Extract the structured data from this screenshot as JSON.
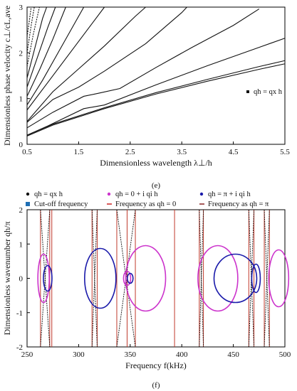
{
  "chart_data": [
    {
      "type": "line",
      "panel_label": "(e)",
      "xlabel": "Dimensionless wavelength",
      "xlabel_symbol": "λ⊥/h",
      "ylabel": "Dimensionless phase velocity",
      "ylabel_symbol": "c⊥/cL,ave",
      "xlim": [
        0.5,
        5.5
      ],
      "ylim": [
        0,
        3
      ],
      "xticks": [
        "0.5",
        "1.5",
        "2.5",
        "3.5",
        "4.5",
        "5.5"
      ],
      "yticks": [
        "0",
        "1",
        "2",
        "3"
      ],
      "legend": {
        "position": "right",
        "label": "qh = qx h"
      },
      "series": [
        {
          "values": [
            [
              0.5,
              0.18
            ],
            [
              1.0,
              0.42
            ],
            [
              2.0,
              0.78
            ],
            [
              3.0,
              1.1
            ],
            [
              4.0,
              1.38
            ],
            [
              5.0,
              1.64
            ],
            [
              5.5,
              1.76
            ]
          ]
        },
        {
          "values": [
            [
              0.5,
              0.2
            ],
            [
              1.0,
              0.44
            ],
            [
              2.0,
              0.8
            ],
            [
              3.0,
              1.13
            ],
            [
              4.0,
              1.42
            ],
            [
              5.0,
              1.7
            ],
            [
              5.5,
              1.83
            ]
          ]
        },
        {
          "values": [
            [
              0.5,
              0.2
            ],
            [
              0.9,
              0.4
            ],
            [
              1.6,
              0.78
            ],
            [
              2.0,
              0.86
            ],
            [
              3.0,
              1.3
            ],
            [
              4.0,
              1.72
            ],
            [
              5.0,
              2.12
            ],
            [
              5.5,
              2.32
            ]
          ]
        },
        {
          "values": [
            [
              0.5,
              0.36
            ],
            [
              1.0,
              0.7
            ],
            [
              1.6,
              1.05
            ],
            [
              1.9,
              1.12
            ],
            [
              2.3,
              1.22
            ],
            [
              3.0,
              1.68
            ],
            [
              3.7,
              2.12
            ],
            [
              4.5,
              2.6
            ],
            [
              5.0,
              2.96
            ]
          ]
        },
        {
          "values": [
            [
              0.5,
              0.48
            ],
            [
              1.0,
              0.98
            ],
            [
              1.5,
              1.25
            ],
            [
              2.0,
              1.6
            ],
            [
              2.8,
              2.2
            ],
            [
              3.5,
              2.88
            ],
            [
              3.6,
              3.0
            ]
          ]
        },
        {
          "values": [
            [
              0.5,
              0.5
            ],
            [
              1.0,
              1.15
            ],
            [
              1.5,
              1.65
            ],
            [
              2.0,
              2.15
            ],
            [
              2.6,
              2.8
            ],
            [
              2.8,
              3.0
            ]
          ]
        },
        {
          "values": [
            [
              0.5,
              0.75
            ],
            [
              0.9,
              1.35
            ],
            [
              1.3,
              1.95
            ],
            [
              1.7,
              2.55
            ],
            [
              2.0,
              3.0
            ]
          ]
        },
        {
          "values": [
            [
              0.5,
              0.86
            ],
            [
              0.8,
              1.4
            ],
            [
              1.1,
              2.0
            ],
            [
              1.4,
              2.6
            ],
            [
              1.6,
              3.0
            ]
          ]
        },
        {
          "values": [
            [
              0.5,
              1.05
            ],
            [
              0.75,
              1.65
            ],
            [
              1.0,
              2.3
            ],
            [
              1.25,
              3.0
            ]
          ]
        },
        {
          "values": [
            [
              0.5,
              1.25
            ],
            [
              0.7,
              1.9
            ],
            [
              0.9,
              2.55
            ],
            [
              1.05,
              3.0
            ]
          ]
        },
        {
          "values": [
            [
              0.5,
              1.45
            ],
            [
              0.65,
              2.1
            ],
            [
              0.8,
              2.75
            ],
            [
              0.88,
              3.0
            ]
          ]
        },
        {
          "values": [
            [
              0.5,
              1.7
            ],
            [
              0.62,
              2.4
            ],
            [
              0.74,
              3.0
            ]
          ]
        },
        {
          "values": [
            [
              0.5,
              2.0
            ],
            [
              0.58,
              2.6
            ],
            [
              0.64,
              3.0
            ]
          ]
        },
        {
          "values": [
            [
              0.5,
              2.35
            ],
            [
              0.55,
              2.75
            ],
            [
              0.58,
              3.0
            ]
          ]
        }
      ]
    },
    {
      "type": "line",
      "panel_label": "(f)",
      "xlabel": "Frequency",
      "xlabel_symbol": "f(kHz)",
      "ylabel": "Dimensionless wavenumber",
      "ylabel_symbol": "qh/π",
      "xlim": [
        250,
        500
      ],
      "ylim": [
        -2,
        2
      ],
      "xticks": [
        "250",
        "300",
        "350",
        "400",
        "450",
        "500"
      ],
      "yticks": [
        "-2",
        "-1",
        "0",
        "1",
        "2"
      ],
      "legend": {
        "position": "top",
        "entries": [
          {
            "label": "qh = qx h",
            "color": "#111111",
            "marker": "dot"
          },
          {
            "label": "qh = 0 + i qi h",
            "color": "#cc33cc",
            "marker": "dot"
          },
          {
            "label": "qh = π + i qi h",
            "color": "#1a1aaa",
            "marker": "dot"
          },
          {
            "label": "Cut-off frequency",
            "color": "#1f6fb5",
            "marker": "square"
          },
          {
            "label": "Frequency as qh = 0",
            "color": "#cc2222",
            "marker": "dash"
          },
          {
            "label": "Frequency as qh = π",
            "color": "#882222",
            "marker": "dash"
          }
        ]
      },
      "cutoff_frequencies": [
        263,
        272,
        274,
        313,
        318,
        337,
        347,
        355,
        393,
        417,
        421,
        465,
        470,
        480,
        485
      ],
      "colors": {
        "real": "#111111",
        "imag0": "#cc33cc",
        "imagpi": "#1a1aaa",
        "cutoff": "#c0392b"
      }
    }
  ],
  "captions": {
    "e": "(e)",
    "f": "(f)"
  }
}
